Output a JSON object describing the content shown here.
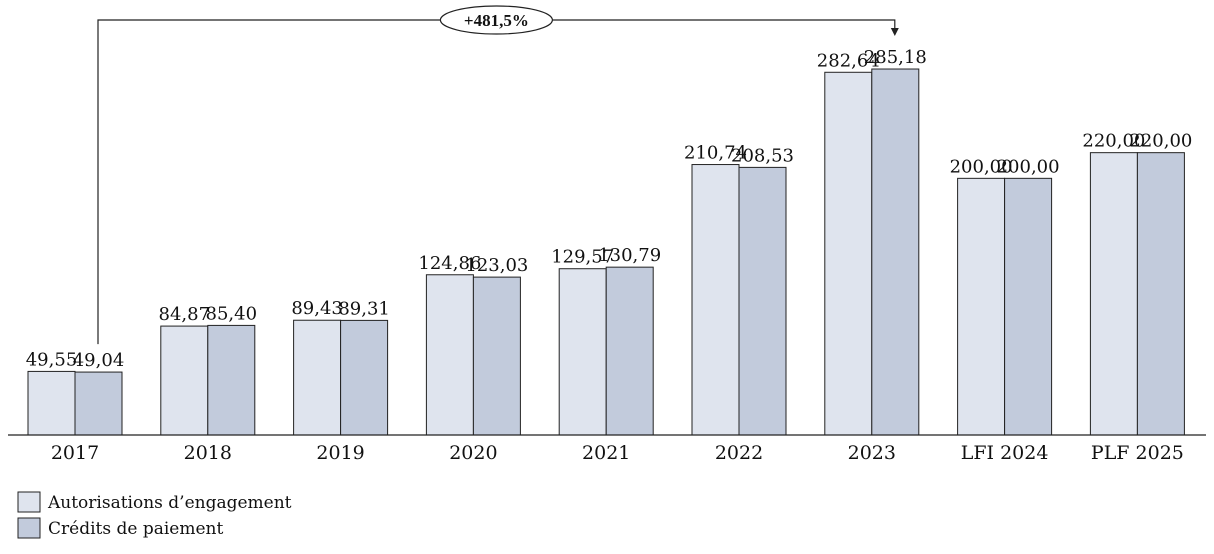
{
  "chart_data": {
    "type": "bar",
    "categories": [
      "2017",
      "2018",
      "2019",
      "2020",
      "2021",
      "2022",
      "2023",
      "LFI 2024",
      "PLF 2025"
    ],
    "series": [
      {
        "name": "Autorisations d’engagement",
        "values": [
          49.55,
          84.87,
          89.43,
          124.86,
          129.57,
          210.74,
          282.64,
          200.0,
          220.0
        ],
        "labels": [
          "49,55",
          "84,87",
          "89,43",
          "124,86",
          "129,57",
          "210,74",
          "282,64",
          "200,00",
          "220,00"
        ],
        "color": "#dfe4ee"
      },
      {
        "name": "Crédits de paiement",
        "values": [
          49.04,
          85.4,
          89.31,
          123.03,
          130.79,
          208.53,
          285.18,
          200.0,
          220.0
        ],
        "labels": [
          "49,04",
          "85,40",
          "89,31",
          "123,03",
          "130,79",
          "208,53",
          "285,18",
          "200,00",
          "220,00"
        ],
        "color": "#c2cbdc"
      }
    ],
    "ylim": [
      0,
      300
    ],
    "grid": false,
    "legend_position": "bottom-left",
    "annotation": {
      "text": "+481,5%",
      "from_category": "2017",
      "to_category": "2023"
    }
  }
}
